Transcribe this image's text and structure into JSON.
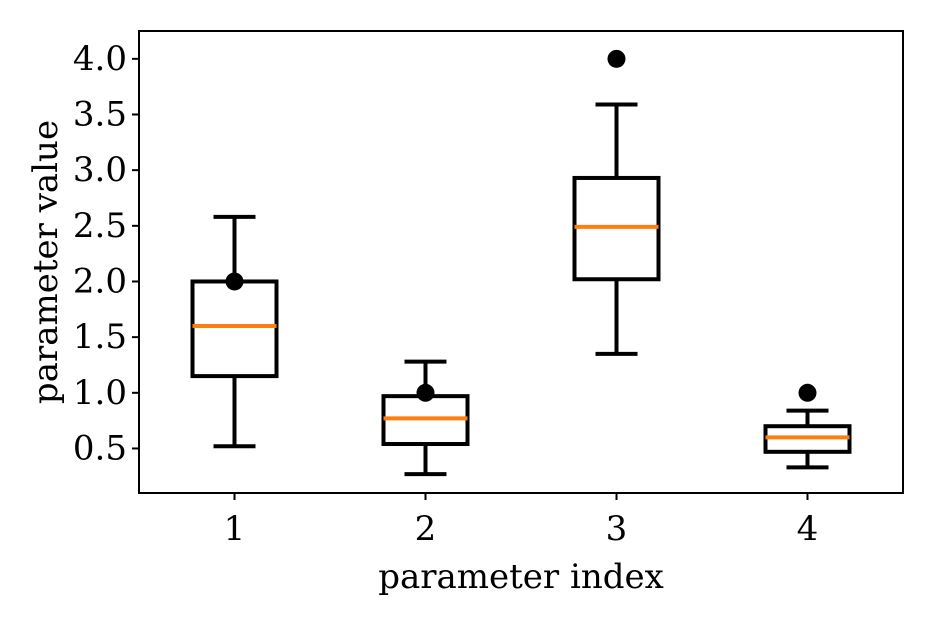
{
  "chart_data": {
    "type": "boxplot",
    "xlabel": "parameter index",
    "ylabel": "parameter value",
    "categories": [
      "1",
      "2",
      "3",
      "4"
    ],
    "ylim": [
      0.1,
      4.25
    ],
    "yticks": [
      "0.5",
      "1.0",
      "1.5",
      "2.0",
      "2.5",
      "3.0",
      "3.5",
      "4.0"
    ],
    "grid": false,
    "boxes": [
      {
        "category": "1",
        "whisker_low": 0.52,
        "q1": 1.15,
        "median": 1.6,
        "q3": 2.0,
        "whisker_high": 2.58
      },
      {
        "category": "2",
        "whisker_low": 0.27,
        "q1": 0.54,
        "median": 0.77,
        "q3": 0.97,
        "whisker_high": 1.28
      },
      {
        "category": "3",
        "whisker_low": 1.35,
        "q1": 2.02,
        "median": 2.49,
        "q3": 2.93,
        "whisker_high": 3.59
      },
      {
        "category": "4",
        "whisker_low": 0.33,
        "q1": 0.47,
        "median": 0.6,
        "q3": 0.7,
        "whisker_high": 0.84
      }
    ],
    "points": [
      {
        "category": "1",
        "value": 2.0
      },
      {
        "category": "2",
        "value": 1.0
      },
      {
        "category": "3",
        "value": 4.0
      },
      {
        "category": "4",
        "value": 1.0
      }
    ],
    "colors": {
      "box": "#000000",
      "median": "#ff7f0e",
      "point": "#000000"
    }
  }
}
